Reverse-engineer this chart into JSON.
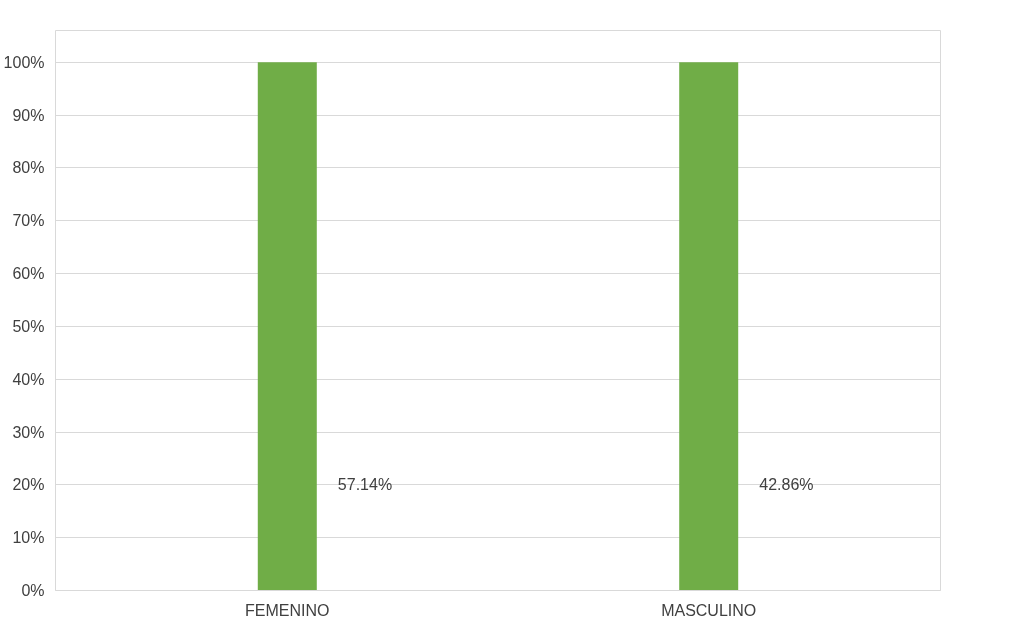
{
  "chart_data": {
    "type": "bar",
    "categories": [
      "FEMENINO",
      "MASCULINO"
    ],
    "values": [
      100,
      100
    ],
    "color": "#70ad47",
    "annotations": [
      "57.14%",
      "42.86%"
    ],
    "ylim": [
      0,
      100
    ],
    "yticks": [
      {
        "value": 0,
        "label": "0%"
      },
      {
        "value": 10,
        "label": "10%"
      },
      {
        "value": 20,
        "label": "20%"
      },
      {
        "value": 30,
        "label": "30%"
      },
      {
        "value": 40,
        "label": "40%"
      },
      {
        "value": 50,
        "label": "50%"
      },
      {
        "value": 60,
        "label": "60%"
      },
      {
        "value": 70,
        "label": "70%"
      },
      {
        "value": 80,
        "label": "80%"
      },
      {
        "value": 90,
        "label": "90%"
      },
      {
        "value": 100,
        "label": "100%"
      }
    ],
    "grid": "y"
  }
}
